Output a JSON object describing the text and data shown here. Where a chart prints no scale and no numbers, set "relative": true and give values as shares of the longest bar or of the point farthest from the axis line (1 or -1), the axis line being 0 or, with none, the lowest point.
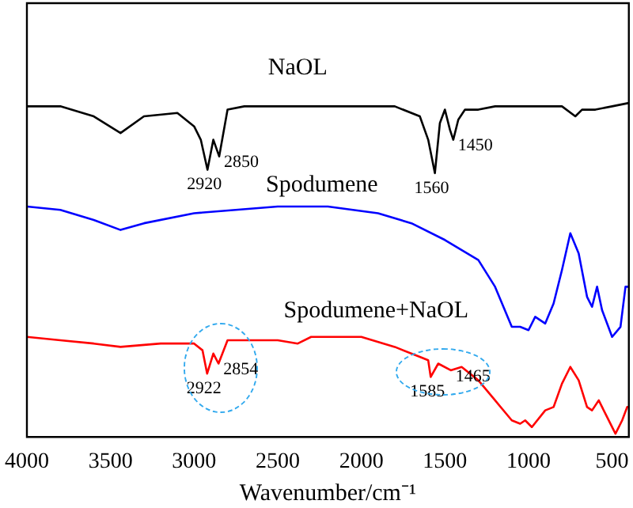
{
  "chart_data": {
    "type": "line",
    "relative": true,
    "xlabel": "Wavenumber/cm⁻¹",
    "xlim": [
      4000,
      400
    ],
    "xticks": [
      4000,
      3500,
      3000,
      2500,
      2000,
      1500,
      1000,
      500
    ],
    "grid": false,
    "legend": false,
    "marker": "none",
    "line_style": "solid",
    "series": [
      {
        "name": "NaOL",
        "color": "#000000",
        "x": [
          4000,
          3800,
          3600,
          3440,
          3300,
          3100,
          3000,
          2960,
          2920,
          2885,
          2850,
          2800,
          2700,
          2000,
          1800,
          1650,
          1600,
          1560,
          1530,
          1500,
          1470,
          1450,
          1420,
          1380,
          1300,
          1200,
          1000,
          900,
          800,
          720,
          680,
          600,
          500,
          400
        ],
        "values": [
          0.99,
          0.99,
          0.96,
          0.91,
          0.96,
          0.97,
          0.93,
          0.89,
          0.8,
          0.89,
          0.84,
          0.98,
          0.99,
          0.99,
          0.99,
          0.96,
          0.89,
          0.79,
          0.94,
          0.98,
          0.92,
          0.89,
          0.95,
          0.98,
          0.98,
          0.99,
          0.99,
          0.99,
          0.99,
          0.96,
          0.98,
          0.98,
          0.99,
          1
        ]
      },
      {
        "name": "Spodumene",
        "color": "#0000ff",
        "x": [
          4000,
          3800,
          3600,
          3440,
          3300,
          3000,
          2500,
          2200,
          1900,
          1700,
          1500,
          1300,
          1200,
          1100,
          1050,
          1000,
          960,
          900,
          850,
          800,
          750,
          700,
          650,
          620,
          590,
          560,
          500,
          450,
          420,
          400
        ],
        "values": [
          0.69,
          0.68,
          0.65,
          0.62,
          0.64,
          0.67,
          0.69,
          0.69,
          0.67,
          0.64,
          0.59,
          0.53,
          0.45,
          0.33,
          0.33,
          0.32,
          0.36,
          0.34,
          0.4,
          0.5,
          0.61,
          0.55,
          0.42,
          0.39,
          0.45,
          0.38,
          0.3,
          0.33,
          0.45,
          0.45
        ]
      },
      {
        "name": "Spodumene+NaOL",
        "color": "#ff0000",
        "x": [
          4000,
          3800,
          3600,
          3440,
          3200,
          3000,
          2950,
          2922,
          2885,
          2854,
          2800,
          2500,
          2380,
          2300,
          2000,
          1800,
          1650,
          1600,
          1585,
          1540,
          1465,
          1400,
          1300,
          1200,
          1100,
          1050,
          1020,
          980,
          900,
          850,
          800,
          750,
          700,
          650,
          620,
          580,
          540,
          480,
          440,
          410,
          400
        ],
        "values": [
          0.3,
          0.29,
          0.28,
          0.27,
          0.28,
          0.28,
          0.26,
          0.19,
          0.25,
          0.22,
          0.29,
          0.29,
          0.28,
          0.3,
          0.3,
          0.27,
          0.24,
          0.23,
          0.18,
          0.22,
          0.2,
          0.21,
          0.17,
          0.11,
          0.05,
          0.04,
          0.05,
          0.03,
          0.08,
          0.09,
          0.16,
          0.21,
          0.17,
          0.09,
          0.08,
          0.11,
          0.07,
          0.01,
          0.05,
          0.09,
          0.09
        ]
      }
    ],
    "annotations": [
      {
        "text": "2920",
        "x": 2920,
        "y": 0.8
      },
      {
        "text": "2850",
        "x": 2850,
        "y": 0.84
      },
      {
        "text": "1560",
        "x": 1560,
        "y": 0.79
      },
      {
        "text": "1450",
        "x": 1450,
        "y": 0.89
      },
      {
        "text": "2922",
        "x": 2922,
        "y": 0.19
      },
      {
        "text": "2854",
        "x": 2854,
        "y": 0.22
      },
      {
        "text": "1585",
        "x": 1585,
        "y": 0.18
      },
      {
        "text": "1465",
        "x": 1465,
        "y": 0.2
      }
    ]
  }
}
